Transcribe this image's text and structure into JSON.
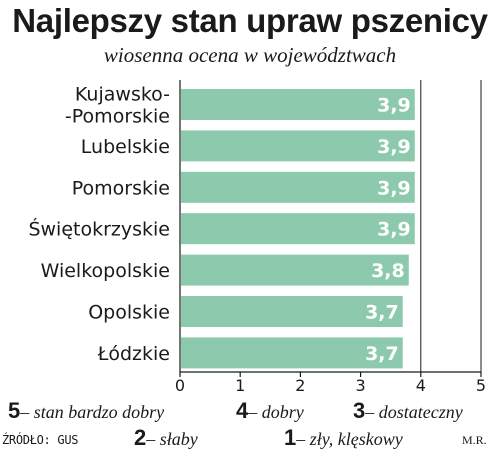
{
  "chart_data": {
    "type": "bar",
    "orientation": "horizontal",
    "title": "Najlepszy stan upraw pszenicy",
    "subtitle": "wiosenna ocena w województwach",
    "categories": [
      [
        "Kujawsko-",
        "-Pomorskie"
      ],
      [
        "Lubelskie"
      ],
      [
        "Pomorskie"
      ],
      [
        "Świętokrzyskie"
      ],
      [
        "Wielkopolskie"
      ],
      [
        "Opolskie"
      ],
      [
        "Łódzkie"
      ]
    ],
    "values": [
      3.9,
      3.9,
      3.9,
      3.9,
      3.8,
      3.7,
      3.7
    ],
    "value_labels": [
      "3,9",
      "3,9",
      "3,9",
      "3,9",
      "3,8",
      "3,7",
      "3,7"
    ],
    "xlim": [
      0,
      5
    ],
    "xticks": [
      "0",
      "1",
      "2",
      "3",
      "4",
      "5"
    ],
    "reference_line": 4,
    "bar_color": "#8dcaad",
    "legend": [
      {
        "key": "5",
        "text": "– stan bardzo dobry"
      },
      {
        "key": "4",
        "text": "– dobry"
      },
      {
        "key": "3",
        "text": "– dostateczny"
      },
      {
        "key": "2",
        "text": "– słaby"
      },
      {
        "key": "1",
        "text": "– zły, klęskowy"
      }
    ],
    "source": "ŹRÓDŁO: GUS",
    "author": "M.R."
  }
}
